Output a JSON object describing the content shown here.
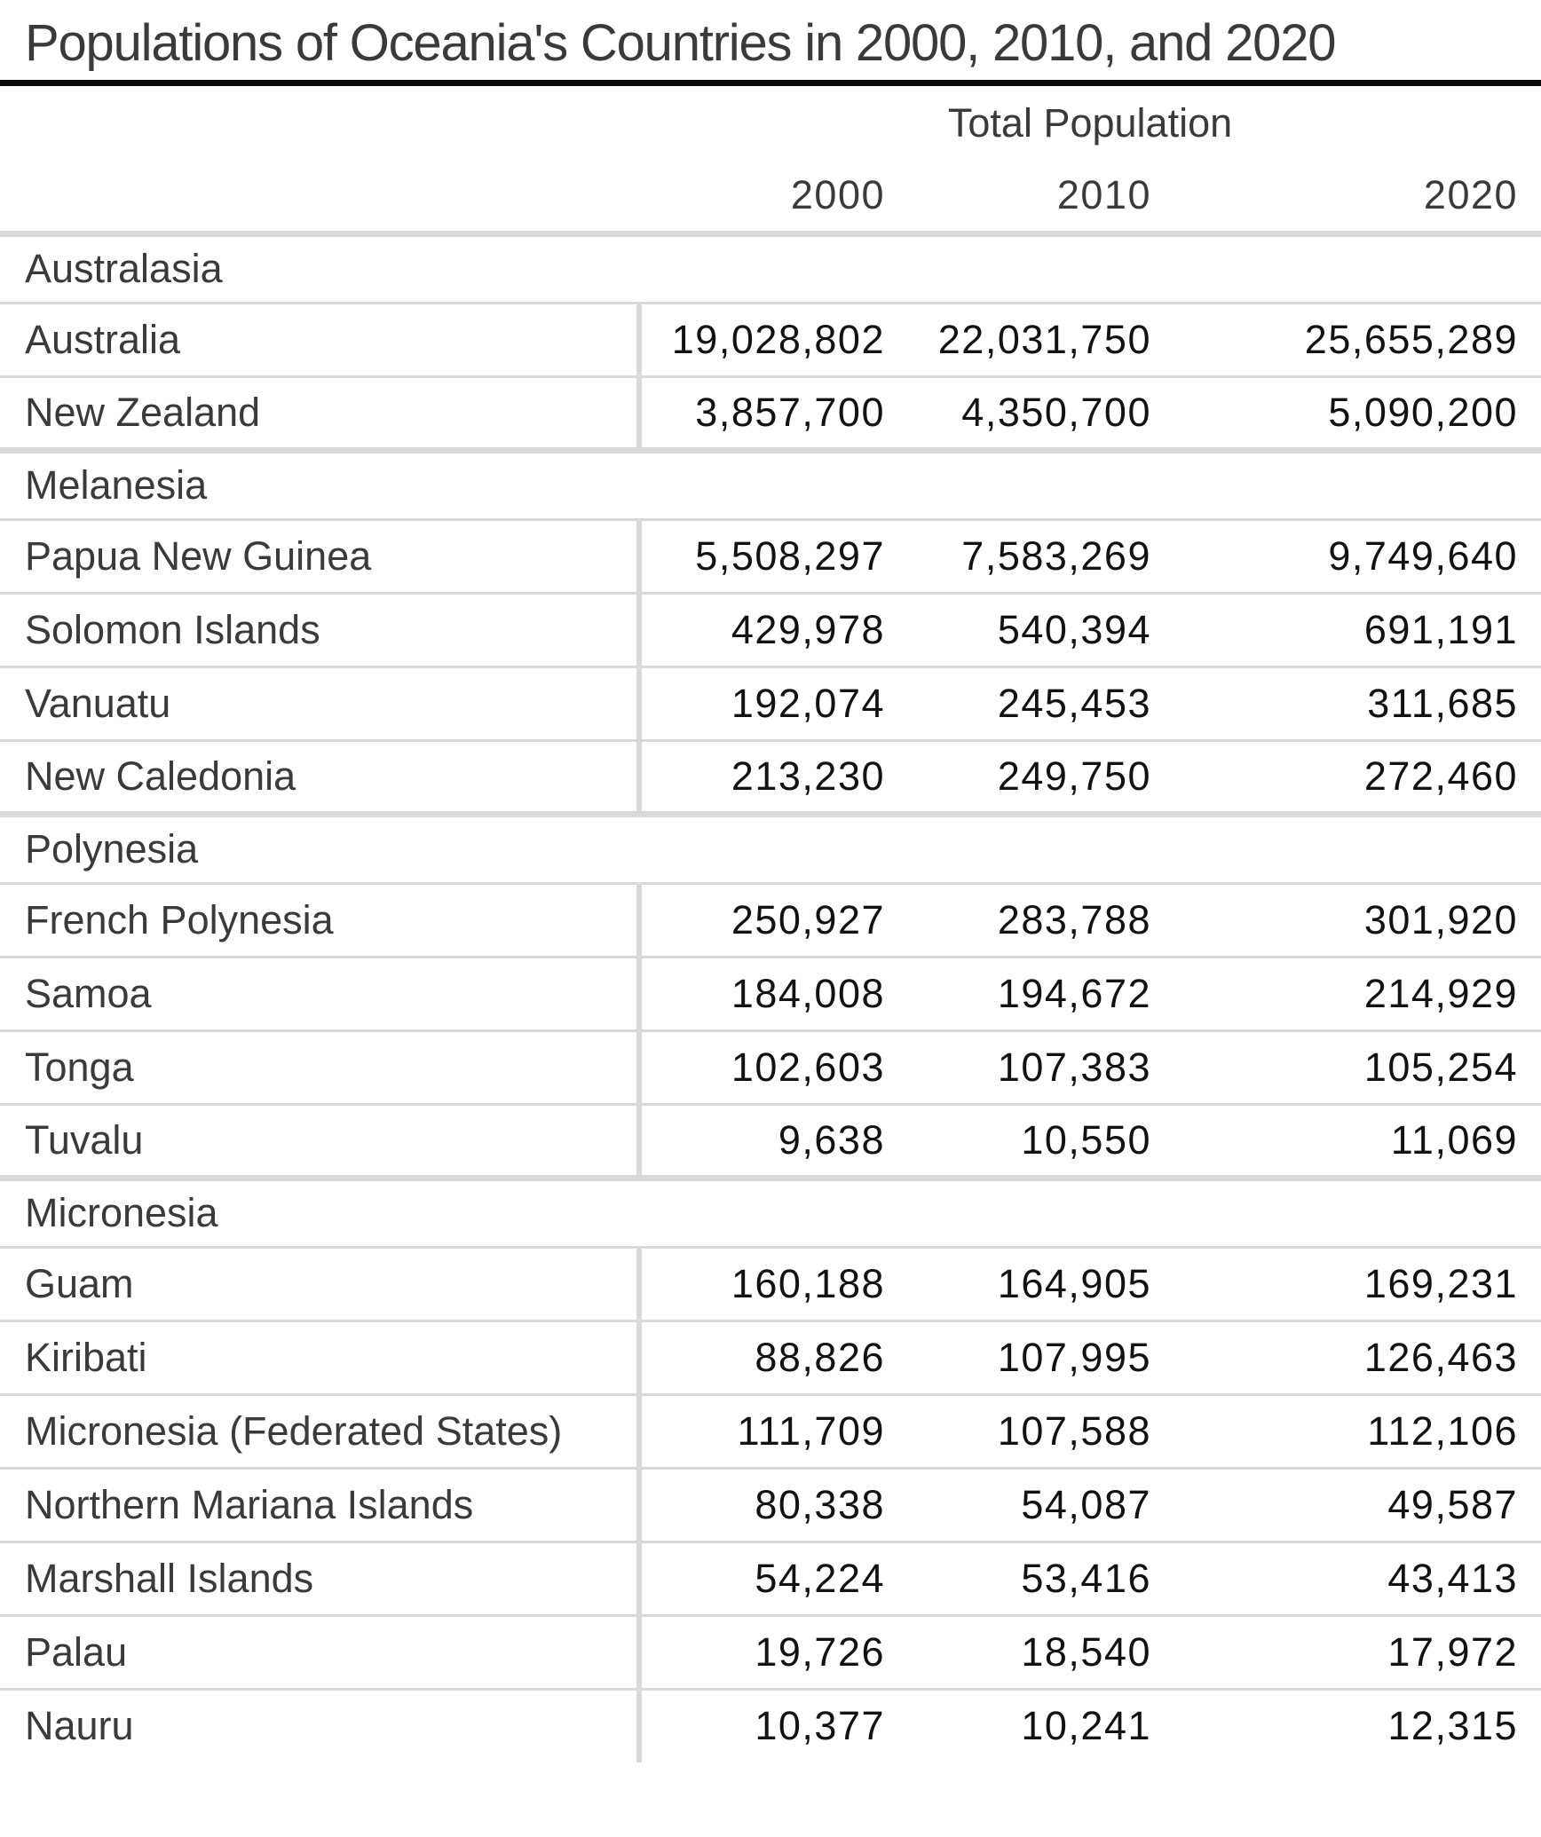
{
  "title": "Populations of Oceania's Countries in 2000, 2010, and 2020",
  "header": {
    "column_group": "Total Population",
    "years": [
      "2000",
      "2010",
      "2020"
    ]
  },
  "sections": [
    {
      "name": "Australasia",
      "rows": [
        {
          "country": "Australia",
          "values": [
            "19,028,802",
            "22,031,750",
            "25,655,289"
          ]
        },
        {
          "country": "New Zealand",
          "values": [
            "3,857,700",
            "4,350,700",
            "5,090,200"
          ]
        }
      ]
    },
    {
      "name": "Melanesia",
      "rows": [
        {
          "country": "Papua New Guinea",
          "values": [
            "5,508,297",
            "7,583,269",
            "9,749,640"
          ]
        },
        {
          "country": "Solomon Islands",
          "values": [
            "429,978",
            "540,394",
            "691,191"
          ]
        },
        {
          "country": "Vanuatu",
          "values": [
            "192,074",
            "245,453",
            "311,685"
          ]
        },
        {
          "country": "New Caledonia",
          "values": [
            "213,230",
            "249,750",
            "272,460"
          ]
        }
      ]
    },
    {
      "name": "Polynesia",
      "rows": [
        {
          "country": "French Polynesia",
          "values": [
            "250,927",
            "283,788",
            "301,920"
          ]
        },
        {
          "country": "Samoa",
          "values": [
            "184,008",
            "194,672",
            "214,929"
          ]
        },
        {
          "country": "Tonga",
          "values": [
            "102,603",
            "107,383",
            "105,254"
          ]
        },
        {
          "country": "Tuvalu",
          "values": [
            "9,638",
            "10,550",
            "11,069"
          ]
        }
      ]
    },
    {
      "name": "Micronesia",
      "rows": [
        {
          "country": "Guam",
          "values": [
            "160,188",
            "164,905",
            "169,231"
          ]
        },
        {
          "country": "Kiribati",
          "values": [
            "88,826",
            "107,995",
            "126,463"
          ]
        },
        {
          "country": "Micronesia (Federated States)",
          "values": [
            "111,709",
            "107,588",
            "112,106"
          ]
        },
        {
          "country": "Northern Mariana Islands",
          "values": [
            "80,338",
            "54,087",
            "49,587"
          ]
        },
        {
          "country": "Marshall Islands",
          "values": [
            "54,224",
            "53,416",
            "43,413"
          ]
        },
        {
          "country": "Palau",
          "values": [
            "19,726",
            "18,540",
            "17,972"
          ]
        },
        {
          "country": "Nauru",
          "values": [
            "10,377",
            "10,241",
            "12,315"
          ]
        }
      ]
    }
  ],
  "colors": {
    "label_text": "#3a3a3a",
    "number_text": "#121212",
    "rule_light": "#d9d9d9",
    "rule_dark": "#0a0a0a",
    "background": "#ffffff"
  },
  "chart_data": {
    "type": "table",
    "title": "Populations of Oceania's Countries in 2000, 2010, and 2020",
    "column_group": "Total Population",
    "columns": [
      "2000",
      "2010",
      "2020"
    ],
    "row_groups": [
      {
        "group": "Australasia",
        "rows": [
          {
            "label": "Australia",
            "values": [
              19028802,
              22031750,
              25655289
            ]
          },
          {
            "label": "New Zealand",
            "values": [
              3857700,
              4350700,
              5090200
            ]
          }
        ]
      },
      {
        "group": "Melanesia",
        "rows": [
          {
            "label": "Papua New Guinea",
            "values": [
              5508297,
              7583269,
              9749640
            ]
          },
          {
            "label": "Solomon Islands",
            "values": [
              429978,
              540394,
              691191
            ]
          },
          {
            "label": "Vanuatu",
            "values": [
              192074,
              245453,
              311685
            ]
          },
          {
            "label": "New Caledonia",
            "values": [
              213230,
              249750,
              272460
            ]
          }
        ]
      },
      {
        "group": "Polynesia",
        "rows": [
          {
            "label": "French Polynesia",
            "values": [
              250927,
              283788,
              301920
            ]
          },
          {
            "label": "Samoa",
            "values": [
              184008,
              194672,
              214929
            ]
          },
          {
            "label": "Tonga",
            "values": [
              102603,
              107383,
              105254
            ]
          },
          {
            "label": "Tuvalu",
            "values": [
              9638,
              10550,
              11069
            ]
          }
        ]
      },
      {
        "group": "Micronesia",
        "rows": [
          {
            "label": "Guam",
            "values": [
              160188,
              164905,
              169231
            ]
          },
          {
            "label": "Kiribati",
            "values": [
              88826,
              107995,
              126463
            ]
          },
          {
            "label": "Micronesia (Federated States)",
            "values": [
              111709,
              107588,
              112106
            ]
          },
          {
            "label": "Northern Mariana Islands",
            "values": [
              80338,
              54087,
              49587
            ]
          },
          {
            "label": "Marshall Islands",
            "values": [
              54224,
              53416,
              43413
            ]
          },
          {
            "label": "Palau",
            "values": [
              19726,
              18540,
              17972
            ]
          },
          {
            "label": "Nauru",
            "values": [
              10377,
              10241,
              12315
            ]
          }
        ]
      }
    ]
  }
}
